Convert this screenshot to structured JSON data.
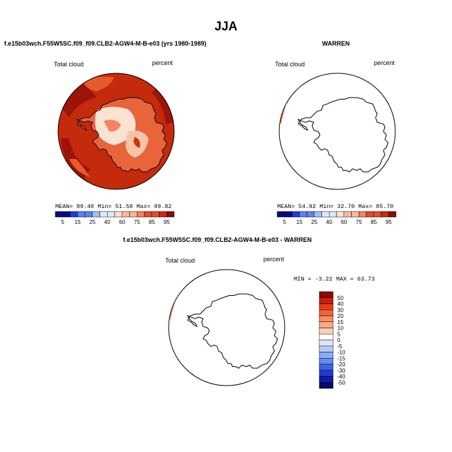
{
  "page": {
    "title": "JJA"
  },
  "panels": [
    {
      "id": "model",
      "title": "f.e15b03wch.F55W5SC.f09_f09.CLB2-AGW4-M-B-e03 (yrs 1980-1989)",
      "variable": "Total cloud",
      "units": "percent",
      "stats": {
        "mean_label": "MEAN=",
        "mean": "89.40",
        "min_label": "Min=",
        "min": "51.58",
        "max_label": "Max=",
        "max": "99.82"
      },
      "colorbar_labels": [
        "5",
        "15",
        "25",
        "40",
        "60",
        "75",
        "85",
        "95"
      ]
    },
    {
      "id": "obs",
      "title": "WARREN",
      "variable": "Total cloud",
      "units": "percent",
      "stats": {
        "mean_label": "MEAN=",
        "mean": "54.92",
        "min_label": "Min=",
        "min": "32.70",
        "max_label": "Max=",
        "max": "85.70"
      },
      "colorbar_labels": [
        "5",
        "15",
        "25",
        "40",
        "60",
        "75",
        "85",
        "95"
      ]
    },
    {
      "id": "diff",
      "title": "f.e15b03wch.F55W5SC.f09_f09.CLB2-AGW4-M-B-e03 - WARREN",
      "variable": "Total cloud",
      "units": "percent",
      "stats": {
        "min_label": "MIN =",
        "min": "-3.22",
        "max_label": "MAX =",
        "max": "63.73"
      },
      "colorbar_labels": [
        "50",
        "40",
        "30",
        "20",
        "15",
        "10",
        "5",
        "0",
        "-5",
        "-10",
        "-15",
        "-20",
        "-30",
        "-40",
        "-50"
      ]
    }
  ],
  "colors": {
    "abs_scale": [
      "#0a0a82",
      "#1e3cdc",
      "#5a82f0",
      "#a0bef5",
      "#dce8fa",
      "#fde0d0",
      "#f8b89a",
      "#f28460",
      "#e64a28",
      "#c82814",
      "#8c0a0a"
    ],
    "diff_scale": [
      "#8c0a0a",
      "#c81e0a",
      "#e63c14",
      "#f0643c",
      "#f58c64",
      "#f8aa8c",
      "#fbcdb4",
      "#ffffff",
      "#dce6f5",
      "#b4c8f5",
      "#8caaf5",
      "#648cf0",
      "#3c64e6",
      "#1e3cd2",
      "#0a1eaa",
      "#0a0a6e"
    ],
    "model_fill": "#c42a0c",
    "model_dark": "#9c1408",
    "model_mid": "#e85a2c",
    "model_light": "#f9c3a8",
    "obs_strip": "#f07850",
    "diff_strip": "#f5a080"
  }
}
